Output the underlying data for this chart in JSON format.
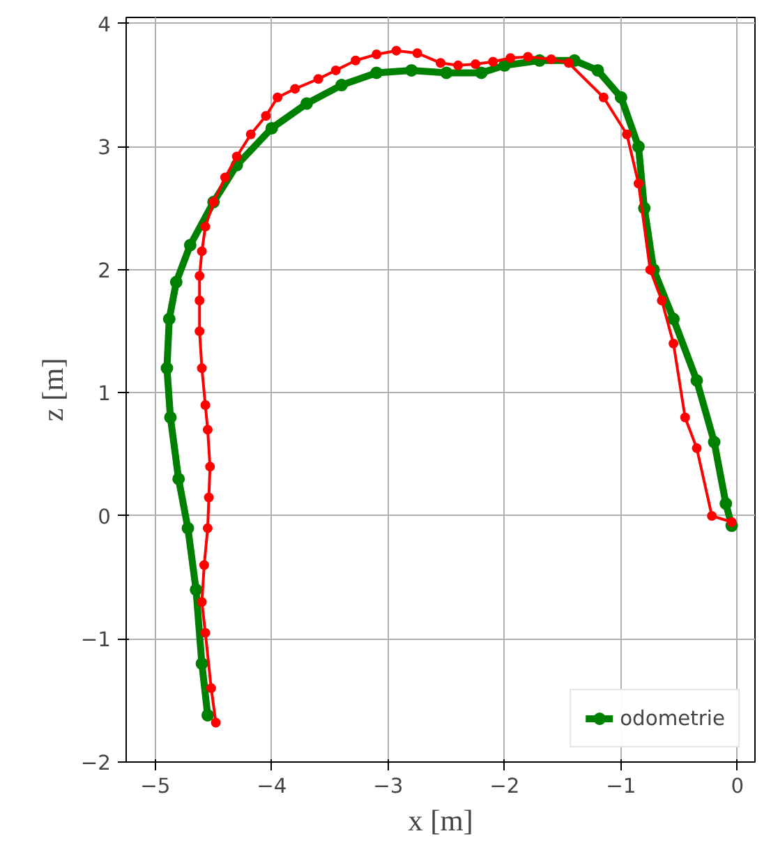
{
  "chart_data": {
    "type": "line",
    "xlabel": "x [m]",
    "ylabel": "z [m]",
    "xlim": [
      -5.25,
      0.15
    ],
    "ylim": [
      -2,
      4.05
    ],
    "xticks": [
      {
        "value": -5,
        "label": "−5"
      },
      {
        "value": -4,
        "label": "−4"
      },
      {
        "value": -3,
        "label": "−3"
      },
      {
        "value": -2,
        "label": "−2"
      },
      {
        "value": -1,
        "label": "−1"
      },
      0
    ],
    "yticks": [
      {
        "value": -2,
        "label": "−2"
      },
      {
        "value": -1,
        "label": "−1"
      },
      0,
      1,
      2,
      3,
      4
    ],
    "grid": true,
    "legend": "bottom right",
    "marker": "circle",
    "line_style": "solid",
    "series": [
      {
        "color": "#ff0000",
        "x": [
          -4.48,
          -4.52,
          -4.57,
          -4.6,
          -4.58,
          -4.55,
          -4.54,
          -4.53,
          -4.55,
          -4.57,
          -4.6,
          -4.62,
          -4.62,
          -4.62,
          -4.6,
          -4.57,
          -4.5,
          -4.4,
          -4.3,
          -4.18,
          -4.05,
          -3.95,
          -3.8,
          -3.6,
          -3.45,
          -3.28,
          -3.1,
          -2.93,
          -2.75,
          -2.55,
          -2.4,
          -2.25,
          -2.1,
          -1.95,
          -1.8,
          -1.6,
          -1.45,
          -1.15,
          -0.95,
          -0.85,
          -0.75,
          -0.65,
          -0.55,
          -0.45,
          -0.35,
          -0.22,
          -0.05
        ],
        "values": [
          -1.68,
          -1.4,
          -0.95,
          -0.7,
          -0.4,
          -0.1,
          0.15,
          0.4,
          0.7,
          0.9,
          1.2,
          1.5,
          1.75,
          1.95,
          2.15,
          2.35,
          2.55,
          2.75,
          2.92,
          3.1,
          3.25,
          3.4,
          3.47,
          3.55,
          3.62,
          3.7,
          3.75,
          3.78,
          3.76,
          3.68,
          3.66,
          3.67,
          3.69,
          3.72,
          3.73,
          3.71,
          3.68,
          3.4,
          3.1,
          2.7,
          2.0,
          1.75,
          1.4,
          0.8,
          0.55,
          0.0,
          -0.05
        ]
      },
      {
        "name": "odometrie",
        "color": "#008000",
        "x": [
          -4.55,
          -4.6,
          -4.65,
          -4.72,
          -4.8,
          -4.87,
          -4.9,
          -4.88,
          -4.82,
          -4.7,
          -4.5,
          -4.3,
          -4.0,
          -3.7,
          -3.4,
          -3.1,
          -2.8,
          -2.5,
          -2.2,
          -2.0,
          -1.7,
          -1.4,
          -1.2,
          -1.0,
          -0.85,
          -0.8,
          -0.72,
          -0.55,
          -0.35,
          -0.2,
          -0.1,
          -0.05
        ],
        "values": [
          -1.62,
          -1.2,
          -0.6,
          -0.1,
          0.3,
          0.8,
          1.2,
          1.6,
          1.9,
          2.2,
          2.55,
          2.85,
          3.15,
          3.35,
          3.5,
          3.6,
          3.62,
          3.6,
          3.6,
          3.66,
          3.7,
          3.7,
          3.62,
          3.4,
          3.0,
          2.5,
          2.0,
          1.6,
          1.1,
          0.6,
          0.1,
          -0.08
        ]
      }
    ]
  }
}
